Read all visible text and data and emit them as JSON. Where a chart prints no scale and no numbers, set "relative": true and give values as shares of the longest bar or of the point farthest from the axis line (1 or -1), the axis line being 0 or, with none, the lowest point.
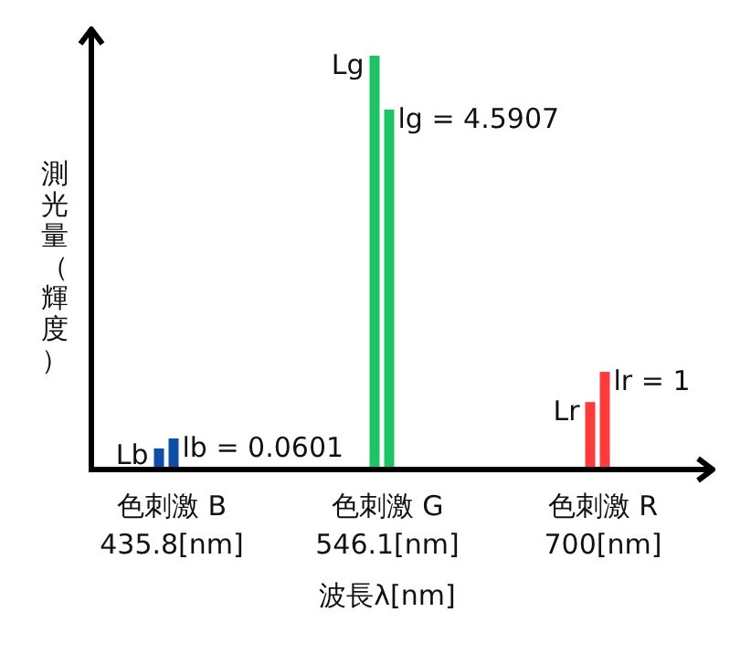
{
  "chart_data": {
    "type": "bar",
    "relative": true,
    "xlabel": "波長λ[nm]",
    "ylabel": "測光量（輝度）",
    "categories": [
      "色刺激 B\n435.8[nm]",
      "色刺激 G\n546.1[nm]",
      "色刺激 R\n700[nm]"
    ],
    "series": [
      {
        "colors": [
          "#0d4ea6",
          "#1ec364",
          "#ff3b3b"
        ],
        "values": [
          0.051,
          1,
          0.163
        ]
      },
      {
        "colors": [
          "#0d4ea6",
          "#1ec364",
          "#ff3b3b"
        ],
        "values": [
          0.075,
          0.87,
          0.236
        ]
      }
    ],
    "annotations": [
      {
        "text": "Lb",
        "x": "色刺激 B\n435.8[nm]",
        "y": 0.051
      },
      {
        "text": "lb = 0.0601",
        "x": "色刺激 B\n435.8[nm]",
        "y": 0.075
      },
      {
        "text": "Lg",
        "x": "色刺激 G\n546.1[nm]",
        "y": 1
      },
      {
        "text": "lg = 4.5907",
        "x": "色刺激 G\n546.1[nm]",
        "y": 0.87
      },
      {
        "text": "Lr",
        "x": "色刺激 R\n700[nm]",
        "y": 0.163
      },
      {
        "text": "lr = 1",
        "x": "色刺激 R\n700[nm]",
        "y": 0.236
      }
    ]
  }
}
